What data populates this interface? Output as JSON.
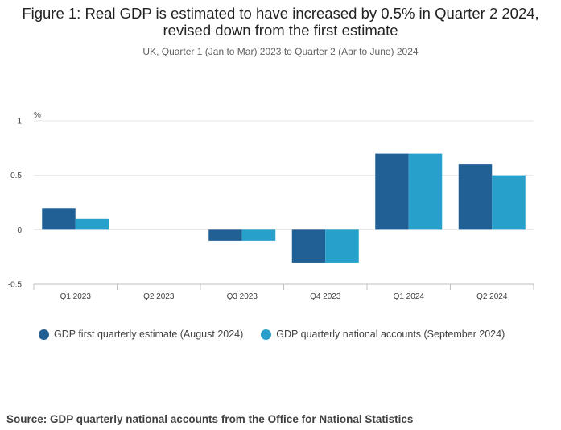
{
  "figure": {
    "title": "Figure 1: Real GDP is estimated to have increased by 0.5% in Quarter 2 2024, revised down from the first estimate",
    "subtitle": "UK, Quarter 1 (Jan to Mar) 2023 to Quarter 2 (Apr to June) 2024",
    "source": "Source: GDP quarterly national accounts from the Office for National Statistics"
  },
  "chart_data": {
    "type": "bar",
    "title": "Figure 1: Real GDP is estimated to have increased by 0.5% in Quarter 2 2024, revised down from the first estimate",
    "subtitle": "UK, Quarter 1 (Jan to Mar) 2023 to Quarter 2 (Apr to June) 2024",
    "ylabel": "%",
    "xlabel": "",
    "categories": [
      "Q1 2023",
      "Q2 2023",
      "Q3 2023",
      "Q4 2023",
      "Q1 2024",
      "Q2 2024"
    ],
    "series": [
      {
        "name": "GDP first quarterly estimate (August 2024)",
        "color": "#206095",
        "values": [
          0.2,
          0.0,
          -0.1,
          -0.3,
          0.7,
          0.6
        ]
      },
      {
        "name": "GDP quarterly national accounts (September 2024)",
        "color": "#27a0cc",
        "values": [
          0.1,
          0.0,
          -0.1,
          -0.3,
          0.7,
          0.5
        ]
      }
    ],
    "ylim": [
      -0.5,
      1
    ],
    "yticks": [
      {
        "value": 1,
        "label": "1"
      },
      {
        "value": 0.5,
        "label": "0.5"
      },
      {
        "value": 0,
        "label": "0"
      },
      {
        "value": -0.5,
        "label": "-0.5"
      }
    ],
    "grid": true,
    "legend_position": "bottom-left"
  }
}
